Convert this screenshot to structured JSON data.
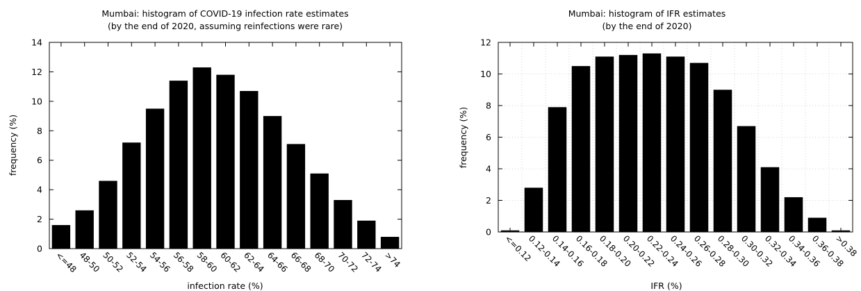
{
  "chart_data": [
    {
      "type": "bar",
      "title": "Mumbai: histogram of COVID-19 infection rate estimates",
      "subtitle": "(by the end of 2020, assuming reinfections were rare)",
      "xlabel": "infection rate (%)",
      "ylabel": "frequency (%)",
      "ylim": [
        0,
        14
      ],
      "yticks": [
        "0",
        "2",
        "4",
        "6",
        "8",
        "10",
        "12",
        "14"
      ],
      "grid": false,
      "categories": [
        "<=48",
        "48-50",
        "50-52",
        "52-54",
        "54-56",
        "56-58",
        "58-60",
        "60-62",
        "62-64",
        "64-66",
        "66-68",
        "68-70",
        "70-72",
        "72-74",
        ">74"
      ],
      "values": [
        1.6,
        2.6,
        4.6,
        7.2,
        9.5,
        11.4,
        12.3,
        11.8,
        10.7,
        9.0,
        7.1,
        5.1,
        3.3,
        1.9,
        0.8
      ],
      "bar_color": "#000000"
    },
    {
      "type": "bar",
      "title": "Mumbai: histogram of IFR estimates",
      "subtitle": "(by the end of 2020)",
      "xlabel": "IFR (%)",
      "ylabel": "frequency (%)",
      "ylim": [
        0,
        12
      ],
      "yticks": [
        "0",
        "2",
        "4",
        "6",
        "8",
        "10",
        "12"
      ],
      "grid": true,
      "categories": [
        "<=0.12",
        "0.12-0.14",
        "0.14-0.16",
        "0.16-0.18",
        "0.18-0.20",
        "0.20-0.22",
        "0.22-0.24",
        "0.24-0.26",
        "0.26-0.28",
        "0.28-0.30",
        "0.30-0.32",
        "0.32-0.34",
        "0.34-0.36",
        "0.36-0.38",
        ">0.38"
      ],
      "values": [
        0.1,
        2.8,
        7.9,
        10.5,
        11.1,
        11.2,
        11.3,
        11.1,
        10.7,
        9.0,
        6.7,
        4.1,
        2.2,
        0.9,
        0.1
      ],
      "bar_color": "#000000"
    }
  ]
}
